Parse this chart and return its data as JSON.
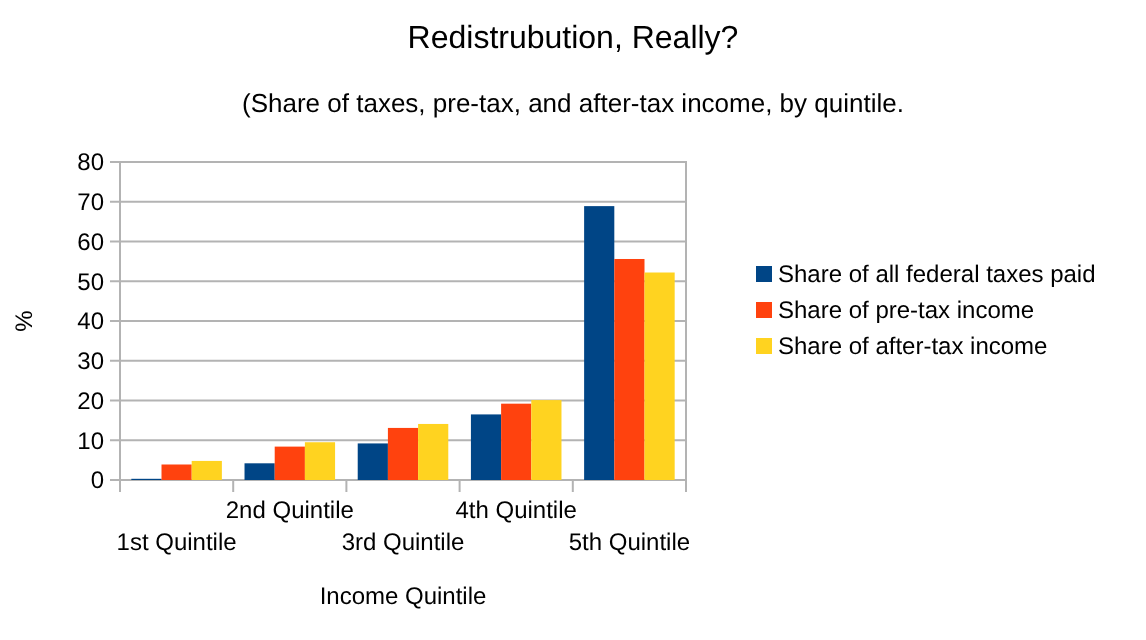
{
  "chart_data": {
    "type": "bar",
    "title": "Redistrubution, Really?",
    "subtitle": "(Share of taxes, pre-tax, and after-tax income, by quintile.",
    "xlabel": "Income Quintile",
    "ylabel": "%",
    "categories": [
      "1st Quintile",
      "2nd Quintile",
      "3rd Quintile",
      "4th Quintile",
      "5th Quintile"
    ],
    "series": [
      {
        "name": "Share of all federal taxes paid",
        "color": "#004586",
        "values": [
          0.3,
          4.2,
          9.2,
          16.5,
          68.9
        ]
      },
      {
        "name": "Share of pre-tax income",
        "color": "#ff420e",
        "values": [
          3.9,
          8.4,
          13.1,
          19.2,
          55.6
        ]
      },
      {
        "name": "Share of after-tax income",
        "color": "#ffd320",
        "values": [
          4.8,
          9.5,
          14.1,
          20.1,
          52.2
        ]
      }
    ],
    "ylim": [
      0,
      80
    ],
    "yticks": [
      0,
      10,
      20,
      30,
      40,
      50,
      60,
      70,
      80
    ],
    "grid": "y",
    "legend": "right"
  }
}
